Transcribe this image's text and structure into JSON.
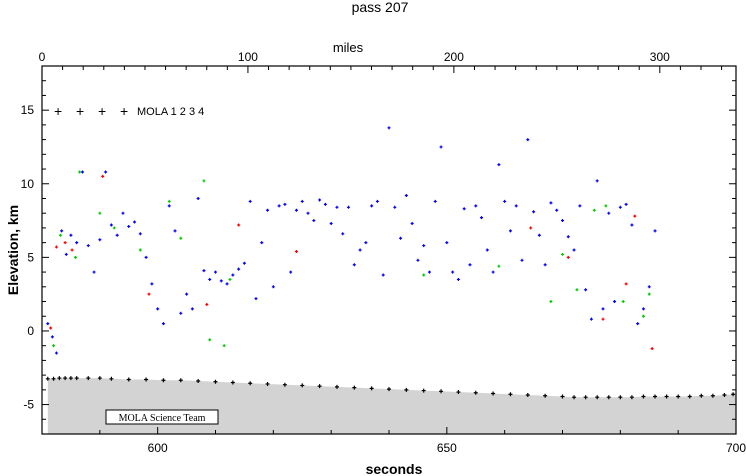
{
  "chart_data": {
    "type": "scatter",
    "title": "pass 207",
    "xlabel": "seconds",
    "ylabel": "Elevation, km",
    "top_axis_label": "miles",
    "xlim": [
      580,
      700
    ],
    "ylim": [
      -7,
      18
    ],
    "x_ticks": [
      600,
      650,
      700
    ],
    "y_ticks": [
      -5,
      0,
      5,
      10,
      15
    ],
    "top_axis": {
      "lim_miles": [
        0,
        337
      ],
      "ticks": [
        0,
        100,
        200,
        300
      ],
      "tick_labels": [
        "0",
        "100",
        "200",
        "300"
      ]
    },
    "legend": {
      "placement": "top-left",
      "label": "MOLA 1 2 3 4",
      "markers": [
        {
          "symbol": "+",
          "color": "#000000"
        },
        {
          "symbol": "+",
          "color": "#ff0000"
        },
        {
          "symbol": "+",
          "color": "#00cc00"
        },
        {
          "symbol": "+",
          "color": "#0000ff"
        }
      ]
    },
    "credit": "MOLA Science Team",
    "ground_fill_color": "#d3d3d3",
    "series": [
      {
        "name": "1",
        "color": "#000000",
        "x": [
          581,
          582,
          583,
          584,
          585,
          586,
          588,
          590,
          592,
          595,
          598,
          601,
          604,
          607,
          610,
          613,
          616,
          619,
          622,
          625,
          628,
          631,
          634,
          637,
          640,
          643,
          646,
          649,
          652,
          655,
          658,
          661,
          664,
          667,
          670,
          672,
          674,
          676,
          678,
          680,
          682,
          684,
          686,
          688,
          690,
          692,
          694,
          696,
          698,
          699.5
        ],
        "y": [
          -3.25,
          -3.25,
          -3.2,
          -3.2,
          -3.2,
          -3.2,
          -3.2,
          -3.2,
          -3.25,
          -3.3,
          -3.3,
          -3.35,
          -3.35,
          -3.4,
          -3.45,
          -3.5,
          -3.55,
          -3.6,
          -3.65,
          -3.7,
          -3.75,
          -3.8,
          -3.85,
          -3.9,
          -3.95,
          -4.0,
          -4.05,
          -4.1,
          -4.15,
          -4.2,
          -4.25,
          -4.3,
          -4.35,
          -4.4,
          -4.45,
          -4.5,
          -4.5,
          -4.5,
          -4.5,
          -4.5,
          -4.5,
          -4.45,
          -4.45,
          -4.45,
          -4.45,
          -4.45,
          -4.4,
          -4.4,
          -4.35,
          -4.3
        ]
      },
      {
        "name": "2",
        "color": "#ff0000",
        "x": [
          581.5,
          582.5,
          584,
          585.2,
          590.5,
          598.5,
          608.5,
          614,
          624,
          664.5,
          671,
          677,
          681,
          682.5,
          685.5
        ],
        "y": [
          0.2,
          5.7,
          6.0,
          5.5,
          10.5,
          2.5,
          1.8,
          7.2,
          5.4,
          7.0,
          5.0,
          0.8,
          3.2,
          7.8,
          -1.2
        ]
      },
      {
        "name": "3",
        "color": "#00cc00",
        "x": [
          582,
          583.2,
          585.8,
          586.5,
          590,
          592.5,
          597,
          602,
          604,
          608,
          609,
          611.5,
          612.5,
          646,
          659,
          668,
          670,
          672.5,
          675.5,
          677.5,
          680.5,
          684,
          685
        ],
        "y": [
          -1.0,
          6.5,
          5.0,
          10.8,
          8.0,
          7.0,
          5.5,
          8.8,
          6.3,
          10.2,
          -0.6,
          -1.0,
          3.5,
          3.8,
          4.4,
          2.0,
          5.2,
          2.8,
          8.2,
          8.5,
          2.0,
          1.0,
          2.5
        ]
      },
      {
        "name": "4",
        "color": "#0000ff",
        "x": [
          581,
          581.8,
          582.5,
          583.4,
          584.2,
          585,
          586,
          587,
          588,
          589,
          590,
          591,
          592,
          593,
          594,
          595,
          596,
          597,
          598,
          599,
          600,
          601,
          602,
          603,
          604,
          605,
          606,
          607,
          608,
          609,
          610,
          611,
          612,
          613,
          614,
          615,
          616,
          617,
          618,
          619,
          620,
          621,
          622,
          623,
          624,
          625,
          626,
          627,
          628,
          629,
          630,
          631,
          632,
          633,
          634,
          635,
          636,
          637,
          638,
          639,
          640,
          641,
          642,
          643,
          644,
          645,
          646,
          647,
          648,
          649,
          650,
          651,
          652,
          653,
          654,
          655,
          656,
          657,
          658,
          659,
          660,
          661,
          662,
          663,
          664,
          665,
          666,
          667,
          668,
          669,
          670,
          671,
          672,
          673,
          674,
          675,
          676,
          677,
          678,
          679,
          680,
          681,
          682,
          683,
          684,
          685,
          686
        ],
        "y": [
          0.5,
          -0.4,
          -1.5,
          6.8,
          5.2,
          6.5,
          6.0,
          10.8,
          5.8,
          4.0,
          6.2,
          10.8,
          7.2,
          6.5,
          8.0,
          7.1,
          7.4,
          6.6,
          5.0,
          3.2,
          1.5,
          0.5,
          8.5,
          6.8,
          1.2,
          2.5,
          1.5,
          9.0,
          4.1,
          3.5,
          4.0,
          3.4,
          3.2,
          3.8,
          4.2,
          4.6,
          8.8,
          2.2,
          6.0,
          8.2,
          3.0,
          8.5,
          8.6,
          4.0,
          8.2,
          8.8,
          8.0,
          7.5,
          8.9,
          8.6,
          7.3,
          8.4,
          6.6,
          8.4,
          4.5,
          5.5,
          6.0,
          8.5,
          8.8,
          3.8,
          13.8,
          8.4,
          6.3,
          9.2,
          7.3,
          4.8,
          5.8,
          4.0,
          8.8,
          12.5,
          6.0,
          4.0,
          3.5,
          8.3,
          4.5,
          8.5,
          7.7,
          5.5,
          4.0,
          11.3,
          8.8,
          6.8,
          8.5,
          4.8,
          13.0,
          8.1,
          6.5,
          4.5,
          8.7,
          8.2,
          7.5,
          6.4,
          5.5,
          8.5,
          2.8,
          0.8,
          10.2,
          1.5,
          8.0,
          2.0,
          8.4,
          8.6,
          7.2,
          0.5,
          1.5,
          3.0,
          6.8
        ]
      }
    ]
  }
}
